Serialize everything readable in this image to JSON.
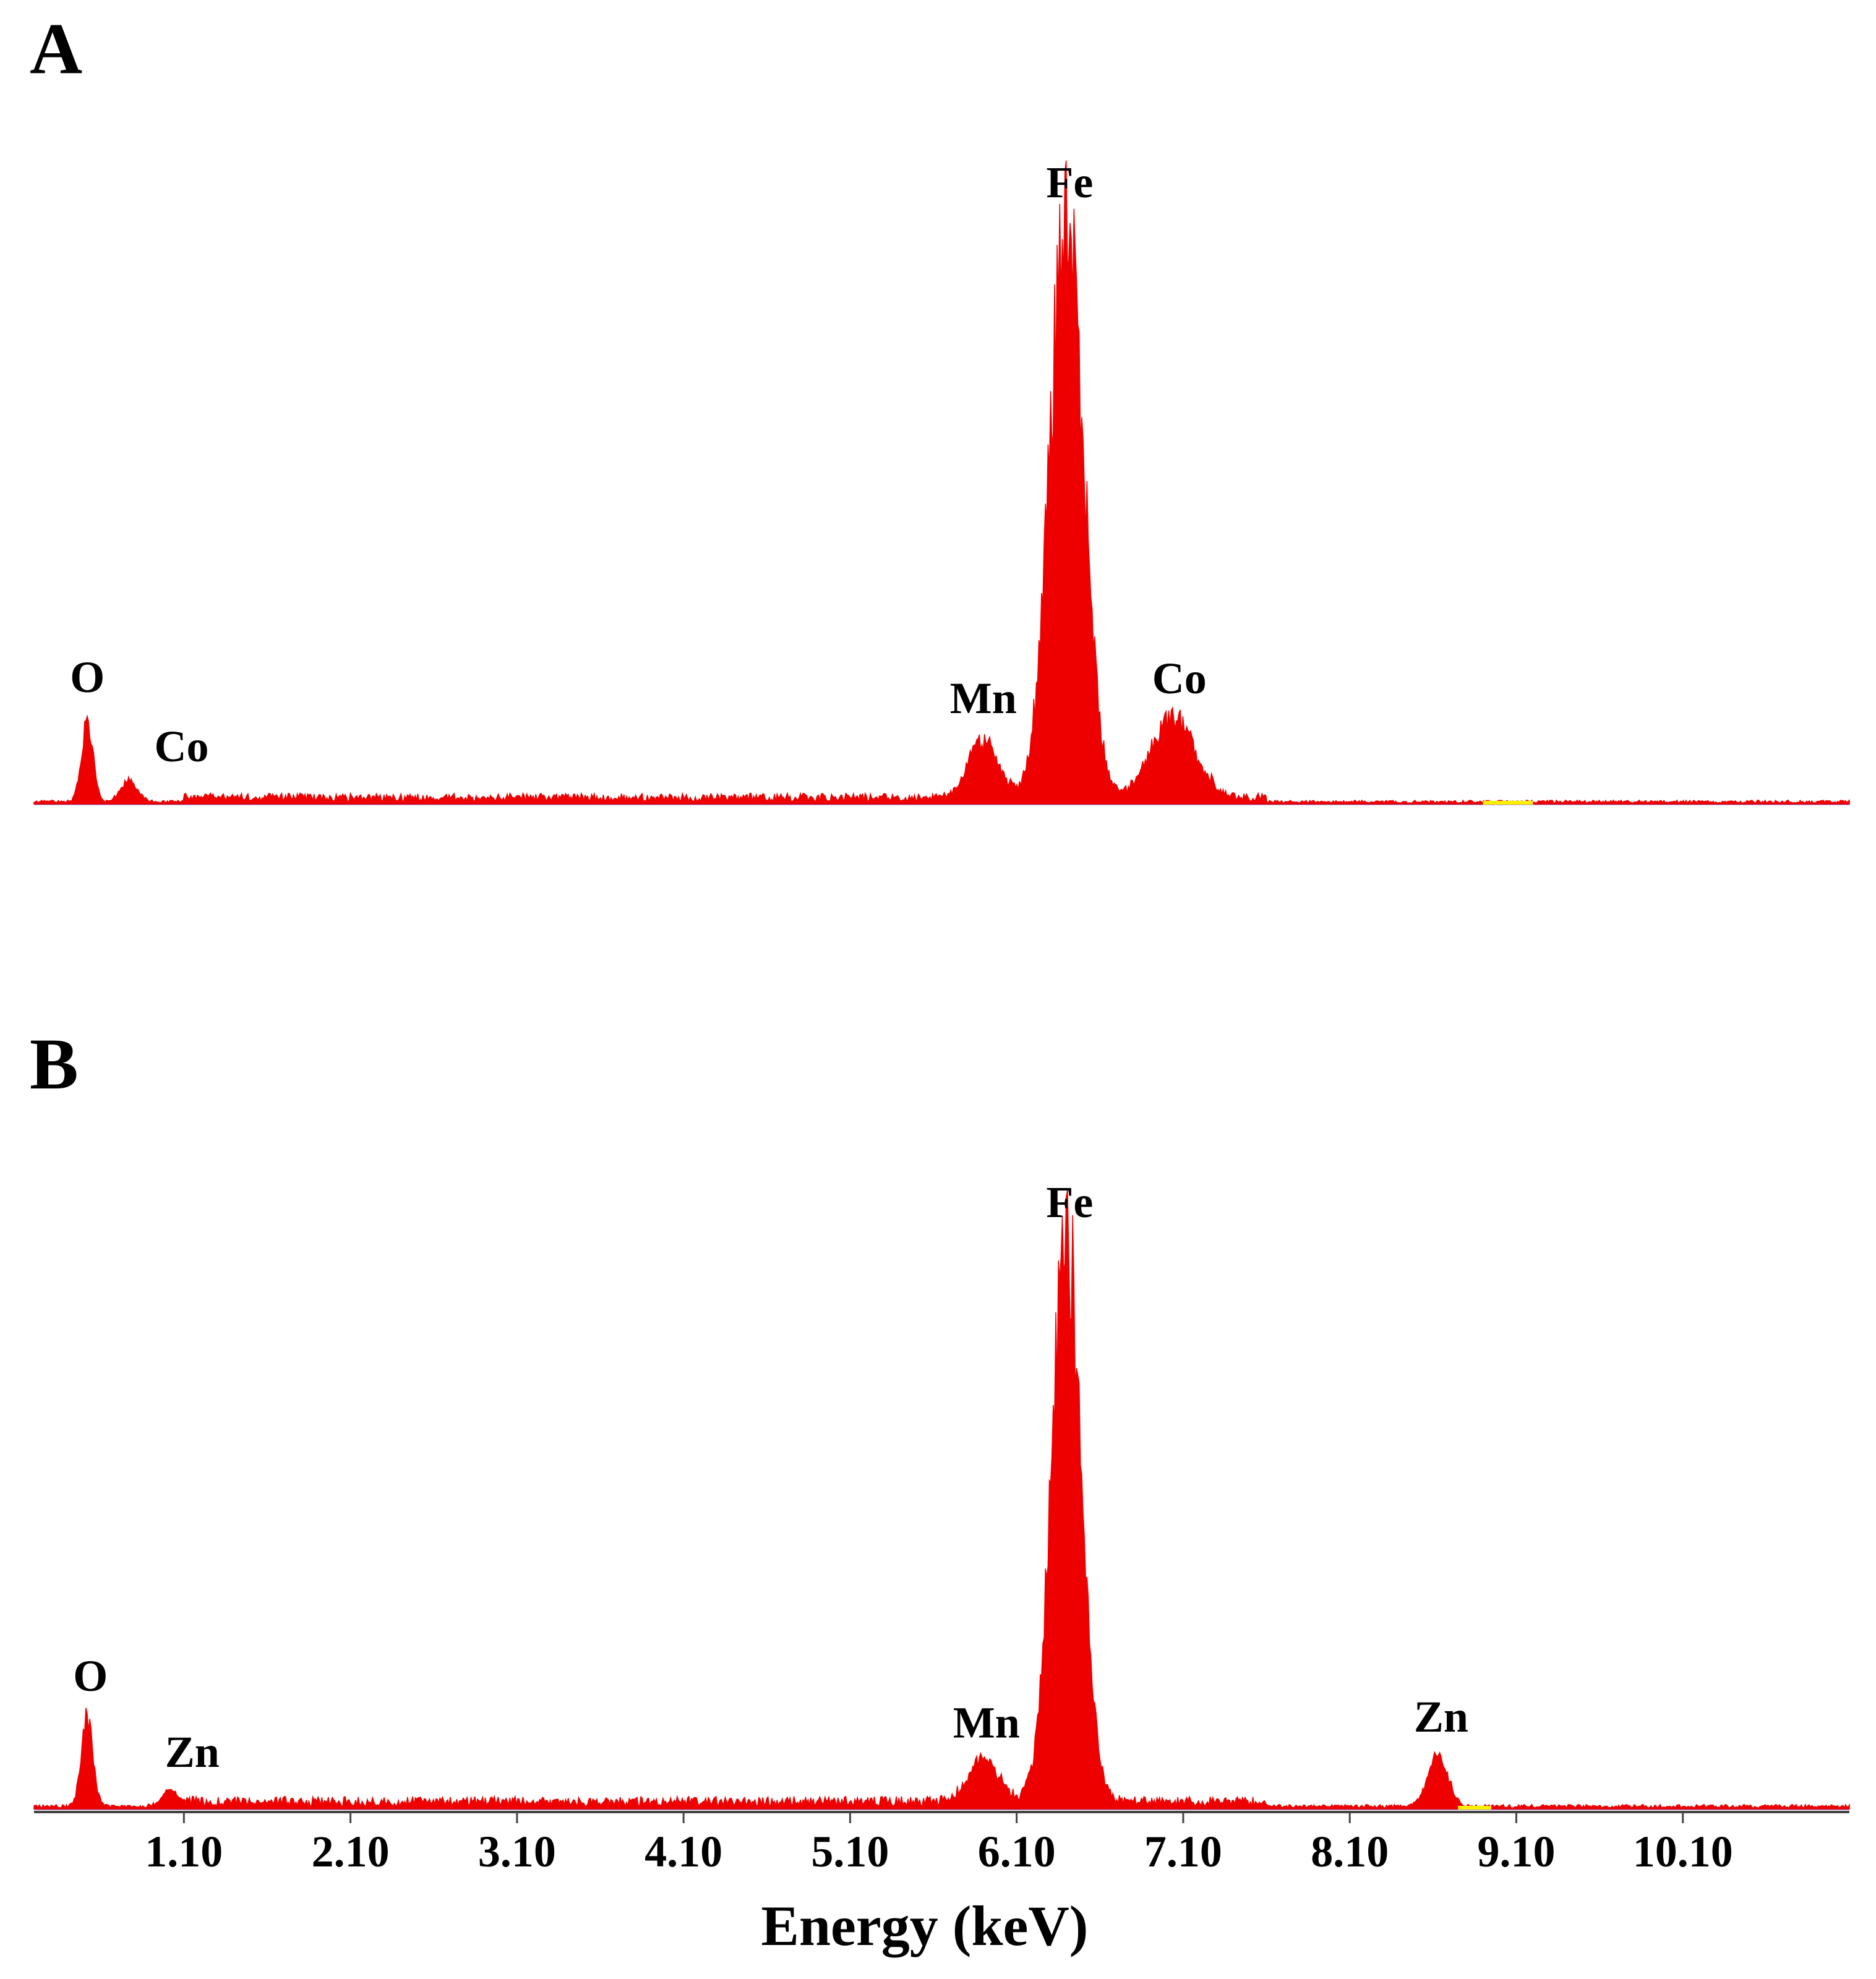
{
  "colors": {
    "spectrum": "#ee0000",
    "baseline": "#6a3fb8",
    "axis": "#555555",
    "highlight": "#ffee00"
  },
  "chart_data": [
    {
      "panel": "A",
      "type": "area",
      "x_unit": "keV",
      "xlim": [
        0.2,
        11.1
      ],
      "ylim": [
        0,
        100
      ],
      "baseline_level": 1.0,
      "peaks": [
        {
          "label": "O",
          "energy": 0.52,
          "height": 13.5,
          "width": 0.035
        },
        {
          "label": "Co",
          "energy": 0.77,
          "height": 3.5,
          "width": 0.05
        },
        {
          "label": "Mn",
          "energy": 5.9,
          "height": 9.5,
          "width": 0.09
        },
        {
          "label": "Fe",
          "energy": 6.4,
          "height": 97,
          "width": 0.1
        },
        {
          "label": "Co",
          "energy": 7.04,
          "height": 13.5,
          "width": 0.13
        }
      ]
    },
    {
      "panel": "B",
      "type": "area",
      "x_unit": "keV",
      "xlim": [
        0.2,
        11.1
      ],
      "ylim": [
        0,
        100
      ],
      "baseline_level": 1.2,
      "xlabel": "Energy (keV)",
      "xticks": [
        "1.10",
        "2.10",
        "3.10",
        "4.10",
        "5.10",
        "6.10",
        "7.10",
        "8.10",
        "9.10",
        "10.10"
      ],
      "peaks": [
        {
          "label": "O",
          "energy": 0.52,
          "height": 15,
          "width": 0.035
        },
        {
          "label": "Zn",
          "energy": 1.02,
          "height": 3.0,
          "width": 0.05
        },
        {
          "label": "Mn",
          "energy": 5.9,
          "height": 7.5,
          "width": 0.09
        },
        {
          "label": "Fe",
          "energy": 6.4,
          "height": 97,
          "width": 0.09
        },
        {
          "label": "Zn",
          "energy": 8.63,
          "height": 8.5,
          "width": 0.06
        }
      ]
    }
  ]
}
